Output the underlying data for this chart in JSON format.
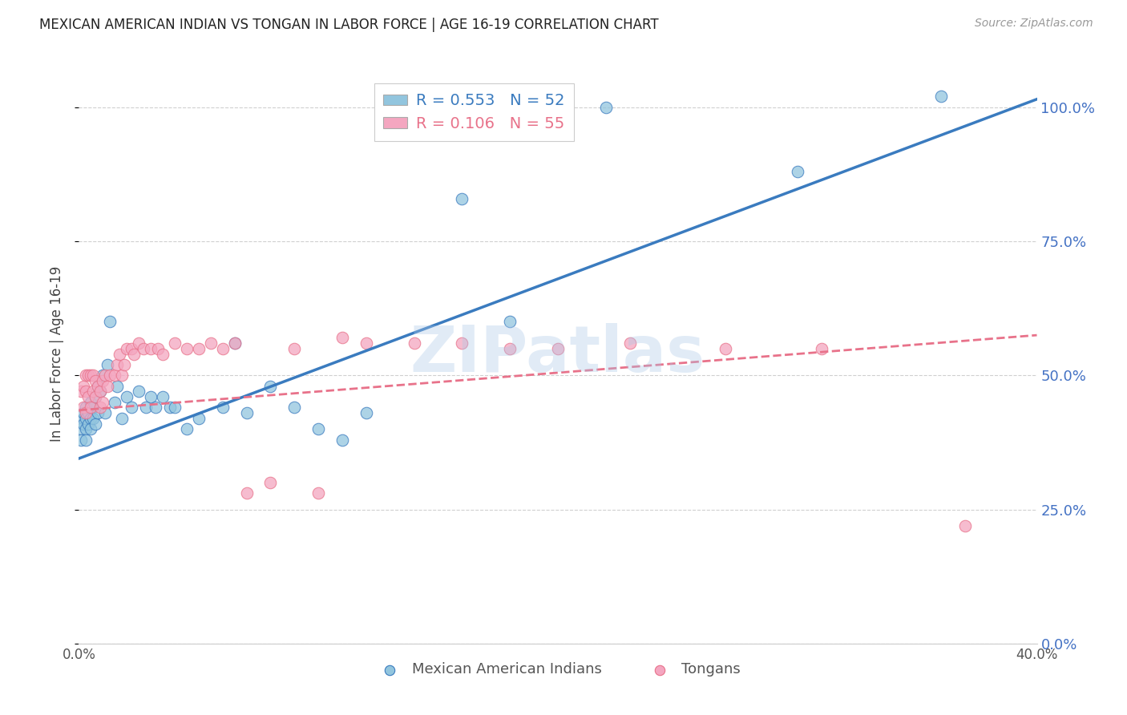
{
  "title": "MEXICAN AMERICAN INDIAN VS TONGAN IN LABOR FORCE | AGE 16-19 CORRELATION CHART",
  "source": "Source: ZipAtlas.com",
  "ylabel": "In Labor Force | Age 16-19",
  "R1": 0.553,
  "N1": 52,
  "R2": 0.106,
  "N2": 55,
  "color1": "#92c5de",
  "color2": "#f4a6c0",
  "line1_color": "#3a7bbf",
  "line2_color": "#e8728a",
  "legend_label1": "Mexican American Indians",
  "legend_label2": "Tongans",
  "watermark": "ZIPatlas",
  "xlim": [
    0.0,
    0.4
  ],
  "ylim": [
    0.0,
    1.08
  ],
  "blue_x": [
    0.001,
    0.001,
    0.002,
    0.002,
    0.002,
    0.003,
    0.003,
    0.003,
    0.003,
    0.004,
    0.004,
    0.005,
    0.005,
    0.005,
    0.006,
    0.006,
    0.007,
    0.007,
    0.008,
    0.008,
    0.009,
    0.01,
    0.011,
    0.012,
    0.013,
    0.015,
    0.016,
    0.018,
    0.02,
    0.022,
    0.025,
    0.028,
    0.03,
    0.032,
    0.035,
    0.038,
    0.04,
    0.045,
    0.05,
    0.06,
    0.065,
    0.07,
    0.08,
    0.09,
    0.1,
    0.11,
    0.12,
    0.16,
    0.18,
    0.22,
    0.3,
    0.36
  ],
  "blue_y": [
    0.4,
    0.38,
    0.42,
    0.41,
    0.43,
    0.4,
    0.38,
    0.44,
    0.42,
    0.43,
    0.41,
    0.42,
    0.45,
    0.4,
    0.44,
    0.42,
    0.46,
    0.41,
    0.48,
    0.43,
    0.47,
    0.5,
    0.43,
    0.52,
    0.6,
    0.45,
    0.48,
    0.42,
    0.46,
    0.44,
    0.47,
    0.44,
    0.46,
    0.44,
    0.46,
    0.44,
    0.44,
    0.4,
    0.42,
    0.44,
    0.56,
    0.43,
    0.48,
    0.44,
    0.4,
    0.38,
    0.43,
    0.83,
    0.6,
    1.0,
    0.88,
    1.02
  ],
  "pink_x": [
    0.001,
    0.002,
    0.002,
    0.003,
    0.003,
    0.003,
    0.004,
    0.004,
    0.005,
    0.005,
    0.006,
    0.006,
    0.007,
    0.007,
    0.008,
    0.009,
    0.009,
    0.01,
    0.01,
    0.011,
    0.012,
    0.013,
    0.015,
    0.016,
    0.017,
    0.018,
    0.019,
    0.02,
    0.022,
    0.023,
    0.025,
    0.027,
    0.03,
    0.033,
    0.035,
    0.04,
    0.045,
    0.05,
    0.055,
    0.06,
    0.065,
    0.07,
    0.08,
    0.09,
    0.1,
    0.11,
    0.12,
    0.14,
    0.16,
    0.18,
    0.2,
    0.23,
    0.27,
    0.31,
    0.37
  ],
  "pink_y": [
    0.47,
    0.48,
    0.44,
    0.5,
    0.47,
    0.43,
    0.5,
    0.46,
    0.5,
    0.44,
    0.5,
    0.47,
    0.49,
    0.46,
    0.48,
    0.47,
    0.44,
    0.49,
    0.45,
    0.5,
    0.48,
    0.5,
    0.5,
    0.52,
    0.54,
    0.5,
    0.52,
    0.55,
    0.55,
    0.54,
    0.56,
    0.55,
    0.55,
    0.55,
    0.54,
    0.56,
    0.55,
    0.55,
    0.56,
    0.55,
    0.56,
    0.28,
    0.3,
    0.55,
    0.28,
    0.57,
    0.56,
    0.56,
    0.56,
    0.55,
    0.55,
    0.56,
    0.55,
    0.55,
    0.22
  ]
}
